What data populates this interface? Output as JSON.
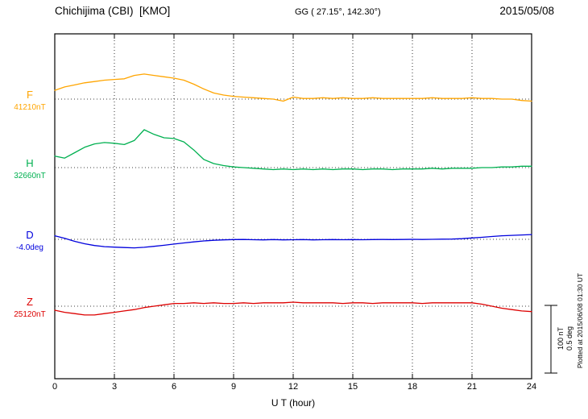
{
  "header": {
    "title": "Chichijima (CBI)  [KMO]",
    "coordinates": "GG ( 27.15°, 142.30°)",
    "date": "2015/05/08"
  },
  "footer": {
    "xlabel": "U T (hour)",
    "plotted_at": "Plotted at 2015/06/08 01:30 UT"
  },
  "chart_data": {
    "type": "line",
    "title": "Chichijima (CBI) [KMO] magnetogram",
    "date": "2015/05/08",
    "xlabel": "U T (hour)",
    "xlim": [
      0,
      24
    ],
    "x_ticks": [
      0,
      3,
      6,
      9,
      12,
      15,
      18,
      21,
      24
    ],
    "grid": "dotted vertical lines every 3 hours; dotted horizontal baseline per component",
    "scale_bar": {
      "label_nt": "100 nT",
      "label_deg": "0.5 deg",
      "nT": 100,
      "deg": 0.5
    },
    "x": [
      0,
      0.5,
      1,
      1.5,
      2,
      2.5,
      3,
      3.5,
      4,
      4.5,
      5,
      5.5,
      6,
      6.5,
      7,
      7.5,
      8,
      8.5,
      9,
      9.5,
      10,
      10.5,
      11,
      11.5,
      12,
      12.5,
      13,
      13.5,
      14,
      14.5,
      15,
      15.5,
      16,
      16.5,
      17,
      17.5,
      18,
      18.5,
      19,
      19.5,
      20,
      20.5,
      21,
      21.5,
      22,
      22.5,
      23,
      23.5,
      24
    ],
    "series": [
      {
        "name": "F",
        "unit": "nT",
        "baseline_value": 41210,
        "baseline_label": "41210nT",
        "color": "#FFA500",
        "offsets": [
          13,
          18,
          21,
          24,
          26,
          28,
          29,
          30,
          35,
          37,
          35,
          33,
          31,
          28,
          22,
          15,
          9,
          6,
          4,
          3,
          2,
          1,
          0,
          -3,
          3,
          1,
          1,
          2,
          1,
          2,
          1,
          1,
          2,
          1,
          1,
          1,
          1,
          1,
          2,
          1,
          1,
          1,
          2,
          1,
          1,
          0,
          0,
          -2,
          -3
        ]
      },
      {
        "name": "H",
        "unit": "nT",
        "baseline_value": 32660,
        "baseline_label": "32660nT",
        "color": "#00B050",
        "offsets": [
          17,
          14,
          22,
          30,
          35,
          37,
          36,
          34,
          40,
          56,
          49,
          44,
          43,
          38,
          26,
          12,
          6,
          3,
          1,
          0,
          -1,
          -2,
          -3,
          -2,
          -3,
          -2,
          -3,
          -2,
          -3,
          -2,
          -2,
          -3,
          -2,
          -2,
          -3,
          -2,
          -2,
          -2,
          -1,
          -2,
          -1,
          -1,
          -1,
          0,
          0,
          1,
          1,
          2,
          2
        ]
      },
      {
        "name": "D",
        "unit": "deg",
        "baseline_value": -4.0,
        "baseline_label": "-4.0deg",
        "color": "#0000DD",
        "offsets": [
          0.026,
          0.008,
          -0.015,
          -0.033,
          -0.046,
          -0.054,
          -0.058,
          -0.061,
          -0.063,
          -0.059,
          -0.052,
          -0.044,
          -0.035,
          -0.027,
          -0.019,
          -0.012,
          -0.007,
          -0.004,
          -0.002,
          -0.001,
          -0.003,
          -0.004,
          -0.002,
          -0.004,
          -0.003,
          -0.002,
          -0.004,
          -0.003,
          -0.002,
          -0.003,
          -0.002,
          -0.003,
          -0.002,
          -0.001,
          -0.002,
          -0.001,
          0,
          -0.001,
          0,
          0.001,
          0.002,
          0.005,
          0.01,
          0.015,
          0.021,
          0.026,
          0.029,
          0.032,
          0.035
        ]
      },
      {
        "name": "Z",
        "unit": "nT",
        "baseline_value": 25120,
        "baseline_label": "25120nT",
        "color": "#DD0000",
        "offsets": [
          -6,
          -9,
          -11,
          -13,
          -13,
          -11,
          -9,
          -7,
          -5,
          -2,
          0,
          2,
          4,
          4,
          5,
          4,
          5,
          4,
          4,
          5,
          4,
          5,
          5,
          5,
          6,
          5,
          5,
          5,
          5,
          4,
          5,
          5,
          4,
          5,
          5,
          5,
          5,
          4,
          5,
          5,
          5,
          5,
          5,
          3,
          0,
          -3,
          -5,
          -7,
          -8
        ]
      }
    ]
  }
}
